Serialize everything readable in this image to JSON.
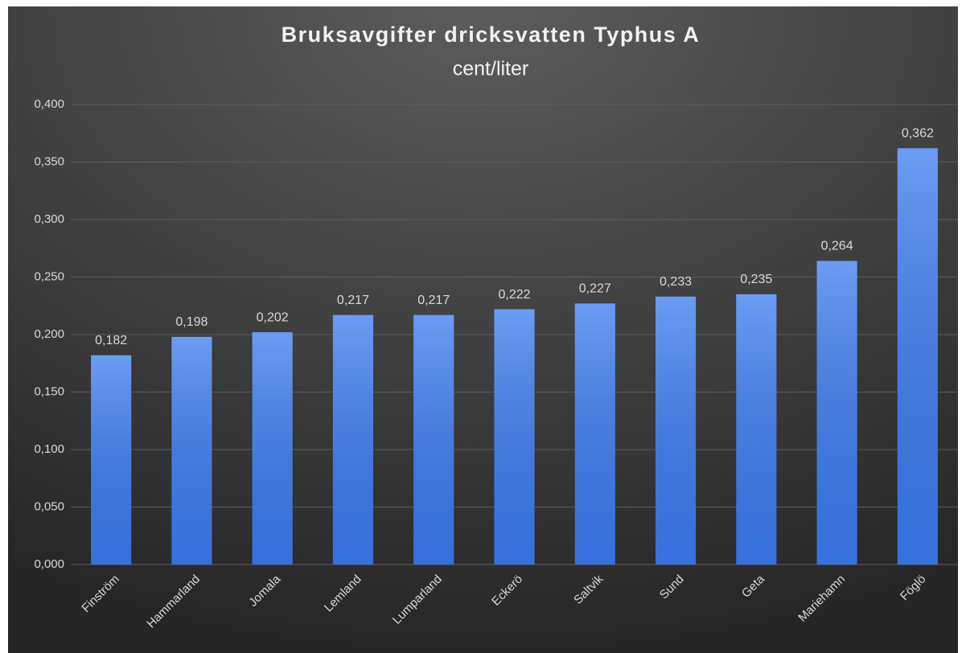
{
  "chart_data": {
    "type": "bar",
    "title": "Bruksavgifter dricksvatten Typhus A",
    "subtitle": "cent/liter",
    "categories": [
      "Finström",
      "Hammarland",
      "Jomala",
      "Lemland",
      "Lumparland",
      "Eckerö",
      "Saltvik",
      "Sund",
      "Geta",
      "Mariehamn",
      "Föglö"
    ],
    "values": [
      0.182,
      0.198,
      0.202,
      0.217,
      0.217,
      0.222,
      0.227,
      0.233,
      0.235,
      0.264,
      0.362
    ],
    "value_labels": [
      "0,182",
      "0,198",
      "0,202",
      "0,217",
      "0,217",
      "0,222",
      "0,227",
      "0,233",
      "0,235",
      "0,264",
      "0,362"
    ],
    "color": "#3b7bf0",
    "ylim": [
      0,
      0.4
    ],
    "yticks": [
      {
        "value": 0,
        "label": "0,000"
      },
      {
        "value": 0.05,
        "label": "0,050"
      },
      {
        "value": 0.1,
        "label": "0,100"
      },
      {
        "value": 0.15,
        "label": "0,150"
      },
      {
        "value": 0.2,
        "label": "0,200"
      },
      {
        "value": 0.25,
        "label": "0,250"
      },
      {
        "value": 0.3,
        "label": "0,300"
      },
      {
        "value": 0.35,
        "label": "0,350"
      },
      {
        "value": 0.4,
        "label": "0,400"
      }
    ],
    "grid": true
  }
}
